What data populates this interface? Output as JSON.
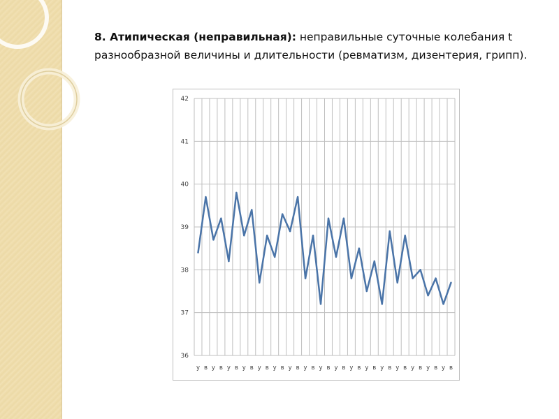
{
  "slide": {
    "heading": "8. Атипическая (неправильная):",
    "text": " неправильные суточные колебания t разнообразной величины и длительности (ревматизм, дизентерия, грипп)."
  },
  "colors": {
    "line": "#4a74a8",
    "grid": "#bfbfbf",
    "side_band": "#f0dfb0"
  },
  "chart_data": {
    "type": "line",
    "title": "",
    "xlabel": "",
    "ylabel": "",
    "ylim": [
      36,
      42
    ],
    "yticks": [
      36,
      37,
      38,
      39,
      40,
      41,
      42
    ],
    "grid": true,
    "legend": "none",
    "categories": [
      "у",
      "в",
      "у",
      "в",
      "у",
      "в",
      "у",
      "в",
      "у",
      "в",
      "у",
      "в",
      "у",
      "в",
      "у",
      "в",
      "у",
      "в",
      "у",
      "в",
      "у",
      "в",
      "у",
      "в",
      "у",
      "в",
      "у",
      "в",
      "у",
      "в",
      "у",
      "в",
      "у",
      "в"
    ],
    "series": [
      {
        "values": [
          38.4,
          39.7,
          38.7,
          39.2,
          38.2,
          39.8,
          38.8,
          39.4,
          37.7,
          38.8,
          38.3,
          39.3,
          38.9,
          39.7,
          37.8,
          38.8,
          37.2,
          39.2,
          38.3,
          39.2,
          37.8,
          38.5,
          37.5,
          38.2,
          37.2,
          38.9,
          37.7,
          38.8,
          37.8,
          38.0,
          37.4,
          37.8,
          37.2,
          37.7
        ]
      }
    ]
  }
}
